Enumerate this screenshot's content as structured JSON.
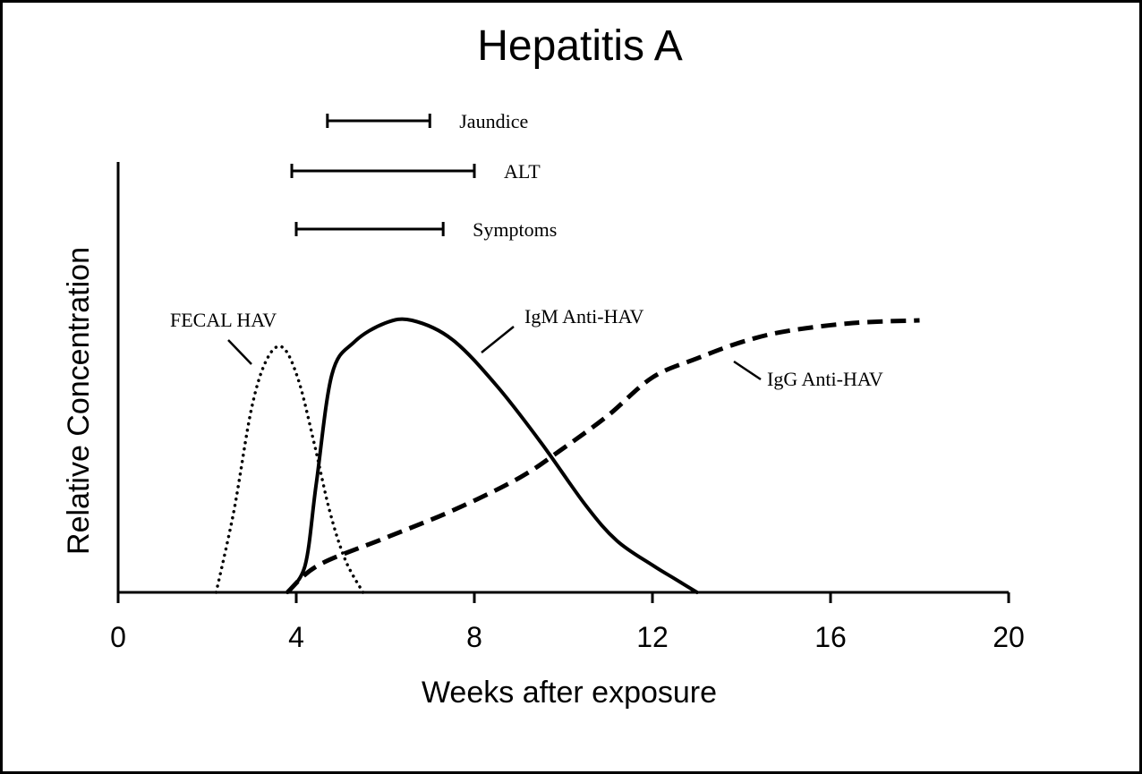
{
  "chart_data": {
    "type": "line",
    "title": "Hepatitis A",
    "xlabel": "Weeks after exposure",
    "ylabel": "Relative Concentration",
    "xlim": [
      0,
      20
    ],
    "ylim": [
      0,
      1
    ],
    "x_ticks": [
      0,
      4,
      8,
      12,
      16,
      20
    ],
    "grid": false,
    "line_color": "#000000",
    "series": [
      {
        "name": "FECAL HAV",
        "style": "dotted",
        "points": [
          [
            2.2,
            0
          ],
          [
            2.6,
            0.3
          ],
          [
            3.0,
            0.68
          ],
          [
            3.35,
            0.86
          ],
          [
            3.7,
            0.9
          ],
          [
            4.05,
            0.78
          ],
          [
            4.4,
            0.55
          ],
          [
            4.75,
            0.3
          ],
          [
            5.1,
            0.12
          ],
          [
            5.5,
            0
          ]
        ]
      },
      {
        "name": "IgM Anti-HAV",
        "style": "solid",
        "points": [
          [
            3.8,
            0
          ],
          [
            4.2,
            0.1
          ],
          [
            4.45,
            0.4
          ],
          [
            4.8,
            0.8
          ],
          [
            5.3,
            0.92
          ],
          [
            6.0,
            0.99
          ],
          [
            6.6,
            1.0
          ],
          [
            7.5,
            0.93
          ],
          [
            8.5,
            0.76
          ],
          [
            9.5,
            0.55
          ],
          [
            10.5,
            0.32
          ],
          [
            11.2,
            0.19
          ],
          [
            12.0,
            0.1
          ],
          [
            12.5,
            0.05
          ],
          [
            13.0,
            0
          ]
        ]
      },
      {
        "name": "IgG Anti-HAV",
        "style": "dashed",
        "points": [
          [
            3.8,
            0
          ],
          [
            4.5,
            0.1
          ],
          [
            6.0,
            0.2
          ],
          [
            7.5,
            0.3
          ],
          [
            9.0,
            0.42
          ],
          [
            10.0,
            0.53
          ],
          [
            11.0,
            0.65
          ],
          [
            12.0,
            0.79
          ],
          [
            13.0,
            0.86
          ],
          [
            14.0,
            0.92
          ],
          [
            15.0,
            0.96
          ],
          [
            16.5,
            0.99
          ],
          [
            18.0,
            1.0
          ]
        ]
      }
    ],
    "series_labels": [
      {
        "text": "FECAL HAV",
        "leader_from": 3.0,
        "leader_level": 0.85
      },
      {
        "text": "IgM Anti-HAV",
        "leader_from": 8.1,
        "leader_level": 0.9
      },
      {
        "text": "IgG Anti-HAV",
        "leader_from": 13.7,
        "leader_level": 0.83
      }
    ],
    "intervals": [
      {
        "label": "Jaundice",
        "start": 4.7,
        "end": 7.0
      },
      {
        "label": "ALT",
        "start": 3.9,
        "end": 8.0
      },
      {
        "label": "Symptoms",
        "start": 4.0,
        "end": 7.3
      }
    ]
  }
}
